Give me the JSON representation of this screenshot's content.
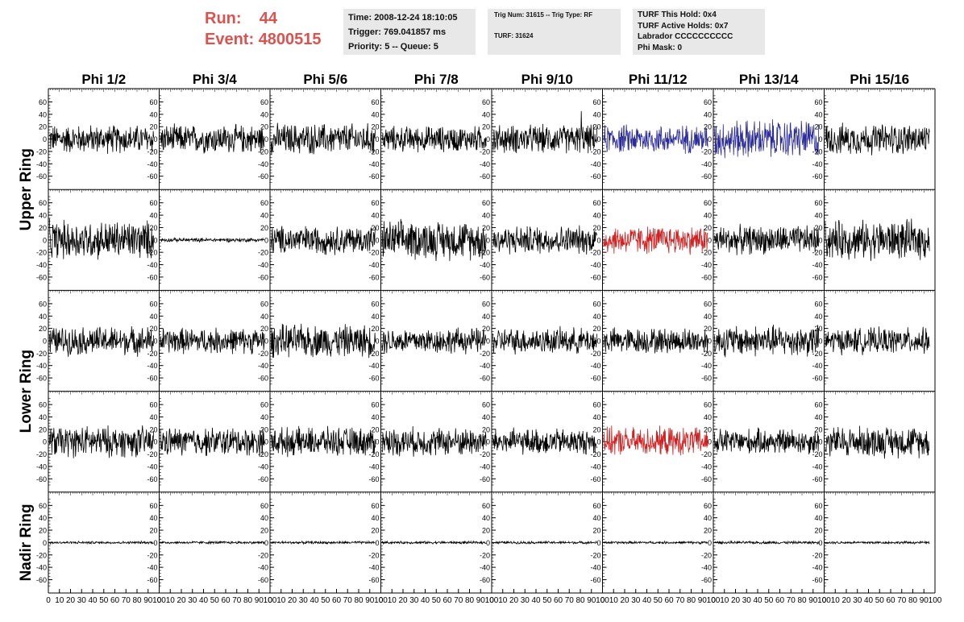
{
  "header": {
    "run_label": "Run:",
    "run_value": "44",
    "event_label": "Event:",
    "event_value": "4800515"
  },
  "info1": {
    "time": "Time: 2008-12-24 18:10:05",
    "trigger": "Trigger: 769.041857 ms",
    "priority": "Priority: 5 -- Queue: 5"
  },
  "info2": {
    "trig": "Trig Num: 31615 -- Trig Type: RF",
    "turf": "TURF: 31624"
  },
  "info3": {
    "this_hold": "TURF This Hold: 0x4",
    "active_holds": "TURF Active Holds: 0x7",
    "labrador": "Labrador CCCCCCCCCC",
    "phi_mask": "Phi Mask: 0"
  },
  "columns": [
    "Phi 1/2",
    "Phi 3/4",
    "Phi 5/6",
    "Phi 7/8",
    "Phi 9/10",
    "Phi 11/12",
    "Phi 13/14",
    "Phi 15/16"
  ],
  "ring_labels": [
    {
      "label": "Upper Ring",
      "rows": [
        0,
        1
      ]
    },
    {
      "label": "Lower Ring",
      "rows": [
        2,
        3
      ]
    },
    {
      "label": "Nadir Ring",
      "rows": [
        4
      ]
    }
  ],
  "colors": {
    "trace": "#000000",
    "blue": "#2b2b9a",
    "red": "#d02020",
    "header_red": "#d9534f",
    "info_bg": "#e8e8e8"
  },
  "chart_data": {
    "type": "line",
    "ylim": [
      -75,
      75
    ],
    "xlim": [
      0,
      100
    ],
    "y_ticks": [
      "60",
      "40",
      "20",
      "0",
      "-20",
      "-40",
      "-60"
    ],
    "y_tick_values": [
      60,
      40,
      20,
      0,
      -20,
      -40,
      -60
    ],
    "x_tick_labels": [
      "0",
      "10",
      "20",
      "30",
      "40",
      "50",
      "60",
      "70",
      "80",
      "90",
      "100"
    ],
    "x_tick_values": [
      0,
      10,
      20,
      30,
      40,
      50,
      60,
      70,
      80,
      90,
      100
    ],
    "x_max_visible_last": 95,
    "panels": [
      [
        {
          "amp": 22,
          "color": "trace"
        },
        {
          "amp": 22,
          "color": "trace"
        },
        {
          "amp": 24,
          "color": "trace"
        },
        {
          "amp": 20,
          "color": "trace"
        },
        {
          "amp": 22,
          "color": "trace",
          "peak": 45
        },
        {
          "amp": 22,
          "color": "blue"
        },
        {
          "amp": 30,
          "color": "blue"
        },
        {
          "amp": 24,
          "color": "trace"
        }
      ],
      [
        {
          "amp": 30,
          "color": "trace"
        },
        {
          "amp": 3,
          "color": "trace"
        },
        {
          "amp": 22,
          "color": "trace"
        },
        {
          "amp": 30,
          "color": "trace"
        },
        {
          "amp": 22,
          "color": "trace"
        },
        {
          "amp": 22,
          "color": "red"
        },
        {
          "amp": 22,
          "color": "trace"
        },
        {
          "amp": 30,
          "color": "trace"
        }
      ],
      [
        {
          "amp": 22,
          "color": "trace"
        },
        {
          "amp": 20,
          "color": "trace"
        },
        {
          "amp": 25,
          "color": "trace"
        },
        {
          "amp": 20,
          "color": "trace"
        },
        {
          "amp": 20,
          "color": "trace"
        },
        {
          "amp": 20,
          "color": "trace"
        },
        {
          "amp": 24,
          "color": "trace"
        },
        {
          "amp": 20,
          "color": "trace"
        }
      ],
      [
        {
          "amp": 24,
          "color": "trace"
        },
        {
          "amp": 22,
          "color": "trace"
        },
        {
          "amp": 22,
          "color": "trace"
        },
        {
          "amp": 22,
          "color": "trace"
        },
        {
          "amp": 20,
          "color": "trace"
        },
        {
          "amp": 22,
          "color": "red"
        },
        {
          "amp": 20,
          "color": "trace"
        },
        {
          "amp": 24,
          "color": "trace"
        }
      ],
      [
        {
          "amp": 2,
          "color": "trace"
        },
        {
          "amp": 2,
          "color": "trace"
        },
        {
          "amp": 2,
          "color": "trace"
        },
        {
          "amp": 2,
          "color": "trace"
        },
        {
          "amp": 2,
          "color": "trace"
        },
        {
          "amp": 2,
          "color": "trace"
        },
        {
          "amp": 2,
          "color": "trace"
        },
        {
          "amp": 2,
          "color": "trace"
        }
      ]
    ]
  }
}
